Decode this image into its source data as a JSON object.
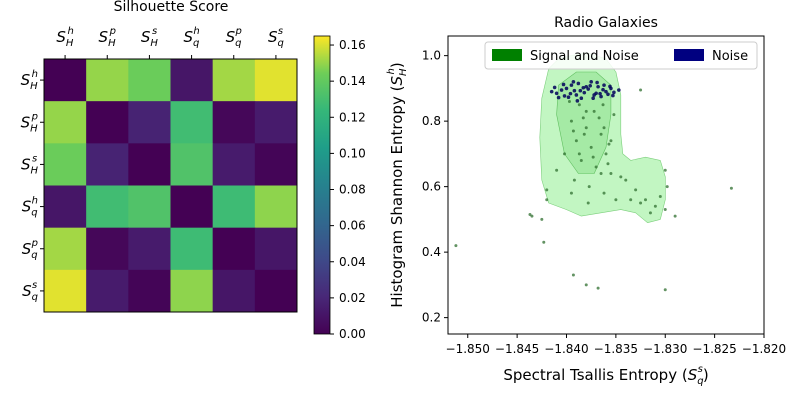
{
  "chart_data": [
    {
      "type": "heatmap",
      "title": "Silhouette Score",
      "row_labels": [
        [
          "S",
          "H",
          "h"
        ],
        [
          "S",
          "H",
          "p"
        ],
        [
          "S",
          "H",
          "s"
        ],
        [
          "S",
          "q",
          "h"
        ],
        [
          "S",
          "q",
          "p"
        ],
        [
          "S",
          "q",
          "s"
        ]
      ],
      "col_labels": [
        [
          "S",
          "H",
          "h"
        ],
        [
          "S",
          "H",
          "p"
        ],
        [
          "S",
          "H",
          "s"
        ],
        [
          "S",
          "q",
          "h"
        ],
        [
          "S",
          "q",
          "p"
        ],
        [
          "S",
          "q",
          "s"
        ]
      ],
      "values": [
        [
          0.0,
          0.15,
          0.143,
          0.011,
          0.152,
          0.161
        ],
        [
          0.15,
          0.0,
          0.018,
          0.128,
          0.003,
          0.014
        ],
        [
          0.143,
          0.018,
          0.0,
          0.134,
          0.014,
          0.002
        ],
        [
          0.011,
          0.128,
          0.134,
          0.0,
          0.127,
          0.149
        ],
        [
          0.152,
          0.003,
          0.014,
          0.127,
          0.0,
          0.011
        ],
        [
          0.161,
          0.014,
          0.002,
          0.149,
          0.011,
          0.0
        ]
      ],
      "colormap": "viridis",
      "colorbar": {
        "range": [
          0,
          0.165
        ],
        "ticks": [
          0.0,
          0.02,
          0.04,
          0.06,
          0.08,
          0.1,
          0.12,
          0.14,
          0.16
        ],
        "tick_labels": [
          "0.00",
          "0.02",
          "0.04",
          "0.06",
          "0.08",
          "0.10",
          "0.12",
          "0.14",
          "0.16"
        ]
      }
    },
    {
      "type": "scatter",
      "title": "Radio Galaxies",
      "xlabel": "Spectral Tsallis Entropy",
      "xlabel_symbol": [
        "S",
        "q",
        "s"
      ],
      "ylabel": "Histogram Shannon Entropy",
      "ylabel_symbol": [
        "S",
        "H",
        "h"
      ],
      "xlim": [
        -1.852,
        -1.82
      ],
      "ylim": [
        0.15,
        1.06
      ],
      "xticks": [
        -1.85,
        -1.845,
        -1.84,
        -1.835,
        -1.83,
        -1.825,
        -1.82
      ],
      "xtick_labels": [
        "−1.850",
        "−1.845",
        "−1.840",
        "−1.835",
        "−1.830",
        "−1.825",
        "−1.820"
      ],
      "yticks": [
        0.2,
        0.4,
        0.6,
        0.8,
        1.0
      ],
      "ytick_labels": [
        "0.2",
        "0.4",
        "0.6",
        "0.8",
        "1.0"
      ],
      "legend": {
        "placement": "top-right",
        "entries": [
          {
            "label": "Signal and Noise",
            "color": "#008000"
          },
          {
            "label": "Noise",
            "color": "#000080"
          }
        ]
      },
      "density_region": {
        "color": "#90ee90",
        "outline": [
          [
            -1.8395,
            1.0
          ],
          [
            -1.838,
            1.01
          ],
          [
            -1.836,
            0.99
          ],
          [
            -1.835,
            0.95
          ],
          [
            -1.8345,
            0.88
          ],
          [
            -1.8345,
            0.76
          ],
          [
            -1.8343,
            0.7
          ],
          [
            -1.8335,
            0.68
          ],
          [
            -1.832,
            0.69
          ],
          [
            -1.8305,
            0.68
          ],
          [
            -1.83,
            0.63
          ],
          [
            -1.83,
            0.56
          ],
          [
            -1.8305,
            0.5
          ],
          [
            -1.8318,
            0.49
          ],
          [
            -1.833,
            0.52
          ],
          [
            -1.8345,
            0.53
          ],
          [
            -1.8365,
            0.52
          ],
          [
            -1.8385,
            0.51
          ],
          [
            -1.84,
            0.53
          ],
          [
            -1.8418,
            0.55
          ],
          [
            -1.8425,
            0.62
          ],
          [
            -1.8427,
            0.75
          ],
          [
            -1.8425,
            0.87
          ],
          [
            -1.8418,
            0.96
          ],
          [
            -1.8408,
            0.99
          ]
        ],
        "core": [
          [
            -1.839,
            0.95
          ],
          [
            -1.837,
            0.95
          ],
          [
            -1.8355,
            0.91
          ],
          [
            -1.8355,
            0.82
          ],
          [
            -1.836,
            0.72
          ],
          [
            -1.8372,
            0.64
          ],
          [
            -1.8388,
            0.64
          ],
          [
            -1.8402,
            0.7
          ],
          [
            -1.841,
            0.82
          ],
          [
            -1.8408,
            0.91
          ]
        ]
      },
      "noise_points": [
        [
          -1.84,
          0.9
        ],
        [
          -1.839,
          0.88
        ],
        [
          -1.838,
          0.905
        ],
        [
          -1.837,
          0.885
        ],
        [
          -1.836,
          0.89
        ],
        [
          -1.8395,
          0.91
        ],
        [
          -1.8385,
          0.87
        ],
        [
          -1.8375,
          0.92
        ],
        [
          -1.8365,
          0.875
        ],
        [
          -1.8355,
          0.9
        ],
        [
          -1.841,
          0.885
        ],
        [
          -1.8405,
          0.895
        ],
        [
          -1.8398,
          0.873
        ],
        [
          -1.8388,
          0.915
        ],
        [
          -1.8378,
          0.898
        ],
        [
          -1.8368,
          0.905
        ],
        [
          -1.8358,
          0.882
        ],
        [
          -1.8412,
          0.903
        ],
        [
          -1.8392,
          0.893
        ],
        [
          -1.8382,
          0.887
        ],
        [
          -1.8372,
          0.88
        ],
        [
          -1.8362,
          0.91
        ],
        [
          -1.8352,
          0.888
        ],
        [
          -1.8402,
          0.877
        ],
        [
          -1.8383,
          0.902
        ],
        [
          -1.8363,
          0.896
        ],
        [
          -1.8415,
          0.89
        ],
        [
          -1.8347,
          0.895
        ],
        [
          -1.8393,
          0.92
        ],
        [
          -1.8373,
          0.87
        ],
        [
          -1.8403,
          0.912
        ],
        [
          -1.8353,
          0.878
        ],
        [
          -1.8396,
          0.884
        ],
        [
          -1.8366,
          0.884
        ],
        [
          -1.8386,
          0.893
        ],
        [
          -1.8376,
          0.908
        ],
        [
          -1.8356,
          0.906
        ],
        [
          -1.8408,
          0.872
        ],
        [
          -1.8389,
          0.862
        ],
        [
          -1.8369,
          0.918
        ]
      ],
      "signal_points": [
        [
          -1.8387,
          0.85
        ],
        [
          -1.8372,
          0.83
        ],
        [
          -1.8395,
          0.8
        ],
        [
          -1.838,
          0.78
        ],
        [
          -1.8365,
          0.76
        ],
        [
          -1.839,
          0.74
        ],
        [
          -1.8375,
          0.72
        ],
        [
          -1.836,
          0.7
        ],
        [
          -1.8385,
          0.68
        ],
        [
          -1.837,
          0.66
        ],
        [
          -1.8355,
          0.64
        ],
        [
          -1.8392,
          0.62
        ],
        [
          -1.8377,
          0.6
        ],
        [
          -1.8362,
          0.58
        ],
        [
          -1.8397,
          0.86
        ],
        [
          -1.8367,
          0.81
        ],
        [
          -1.8382,
          0.76
        ],
        [
          -1.8357,
          0.73
        ],
        [
          -1.8402,
          0.7
        ],
        [
          -1.8352,
          0.82
        ],
        [
          -1.838,
          0.83
        ],
        [
          -1.8362,
          0.78
        ],
        [
          -1.8393,
          0.77
        ],
        [
          -1.8373,
          0.69
        ],
        [
          -1.8358,
          0.67
        ],
        [
          -1.8345,
          0.63
        ],
        [
          -1.834,
          0.62
        ],
        [
          -1.833,
          0.59
        ],
        [
          -1.832,
          0.56
        ],
        [
          -1.831,
          0.54
        ],
        [
          -1.83,
          0.53
        ],
        [
          -1.8305,
          0.57
        ],
        [
          -1.8315,
          0.52
        ],
        [
          -1.8325,
          0.55
        ],
        [
          -1.8335,
          0.56
        ],
        [
          -1.83,
          0.65
        ],
        [
          -1.8298,
          0.6
        ],
        [
          -1.829,
          0.51
        ],
        [
          -1.841,
          0.65
        ],
        [
          -1.842,
          0.59
        ],
        [
          -1.842,
          0.56
        ],
        [
          -1.8425,
          0.5
        ],
        [
          -1.8435,
          0.51
        ],
        [
          -1.8437,
          0.515
        ],
        [
          -1.8325,
          0.895
        ],
        [
          -1.8233,
          0.595
        ],
        [
          -1.8512,
          0.42
        ],
        [
          -1.8423,
          0.43
        ],
        [
          -1.8393,
          0.33
        ],
        [
          -1.838,
          0.3
        ],
        [
          -1.8368,
          0.29
        ],
        [
          -1.83,
          0.285
        ],
        [
          -1.8355,
          0.74
        ],
        [
          -1.8387,
          0.7
        ],
        [
          -1.8365,
          0.64
        ],
        [
          -1.8395,
          0.58
        ],
        [
          -1.8378,
          0.55
        ],
        [
          -1.835,
          0.56
        ],
        [
          -1.8383,
          0.81
        ],
        [
          -1.8363,
          0.85
        ]
      ]
    }
  ]
}
